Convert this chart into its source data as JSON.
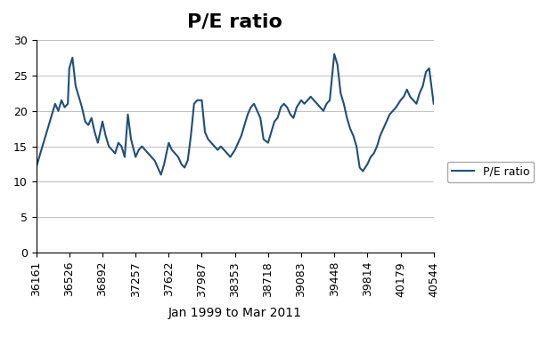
{
  "title": "P/E ratio",
  "xlabel": "Jan 1999 to Mar 2011",
  "legend_label": "P/E ratio",
  "line_color": "#1F4E79",
  "background_color": "#FFFFFF",
  "plot_bg_color": "#FFFFFF",
  "ylim": [
    0,
    30
  ],
  "yticks": [
    0,
    5,
    10,
    15,
    20,
    25,
    30
  ],
  "xtick_labels": [
    "36161",
    "36526",
    "36892",
    "37257",
    "37622",
    "37987",
    "38353",
    "38718",
    "39083",
    "39448",
    "39814",
    "40179",
    "40544"
  ],
  "xtick_values": [
    36161,
    36526,
    36892,
    37257,
    37622,
    37987,
    38353,
    38718,
    39083,
    39448,
    39814,
    40179,
    40544
  ],
  "x_values": [
    36161,
    36195,
    36230,
    36265,
    36300,
    36335,
    36370,
    36405,
    36440,
    36475,
    36510,
    36526,
    36561,
    36596,
    36631,
    36666,
    36701,
    36736,
    36771,
    36806,
    36841,
    36892,
    36927,
    36962,
    36997,
    37032,
    37067,
    37102,
    37137,
    37172,
    37207,
    37257,
    37292,
    37327,
    37362,
    37397,
    37432,
    37467,
    37502,
    37537,
    37572,
    37622,
    37657,
    37692,
    37727,
    37762,
    37797,
    37832,
    37867,
    37902,
    37937,
    37987,
    38022,
    38057,
    38092,
    38127,
    38162,
    38197,
    38232,
    38267,
    38302,
    38353,
    38388,
    38423,
    38458,
    38493,
    38528,
    38563,
    38598,
    38633,
    38668,
    38718,
    38753,
    38788,
    38823,
    38858,
    38893,
    38928,
    38963,
    38998,
    39033,
    39083,
    39118,
    39153,
    39188,
    39223,
    39258,
    39293,
    39328,
    39363,
    39398,
    39448,
    39483,
    39518,
    39553,
    39588,
    39623,
    39658,
    39693,
    39728,
    39763,
    39814,
    39849,
    39884,
    39919,
    39954,
    39989,
    40024,
    40059,
    40094,
    40129,
    40179,
    40214,
    40249,
    40284,
    40319,
    40354,
    40389,
    40424,
    40459,
    40494,
    40544
  ],
  "pe_values": [
    12.0,
    13.5,
    15.0,
    16.5,
    18.0,
    19.5,
    21.0,
    20.0,
    21.5,
    20.5,
    21.0,
    26.0,
    27.5,
    23.5,
    22.0,
    20.5,
    18.5,
    18.0,
    19.0,
    17.0,
    15.5,
    18.5,
    16.5,
    15.0,
    14.5,
    14.0,
    15.5,
    15.0,
    13.5,
    19.5,
    16.0,
    13.5,
    14.5,
    15.0,
    14.5,
    14.0,
    13.5,
    13.0,
    12.0,
    11.0,
    12.5,
    15.5,
    14.5,
    14.0,
    13.5,
    12.5,
    12.0,
    13.0,
    16.5,
    21.0,
    21.5,
    21.5,
    17.0,
    16.0,
    15.5,
    15.0,
    14.5,
    15.0,
    14.5,
    14.0,
    13.5,
    14.5,
    15.5,
    16.5,
    18.0,
    19.5,
    20.5,
    21.0,
    20.0,
    19.0,
    16.0,
    15.5,
    17.0,
    18.5,
    19.0,
    20.5,
    21.0,
    20.5,
    19.5,
    19.0,
    20.5,
    21.5,
    21.0,
    21.5,
    22.0,
    21.5,
    21.0,
    20.5,
    20.0,
    21.0,
    21.5,
    28.0,
    26.5,
    22.5,
    21.0,
    19.0,
    17.5,
    16.5,
    15.0,
    12.0,
    11.5,
    12.5,
    13.5,
    14.0,
    15.0,
    16.5,
    17.5,
    18.5,
    19.5,
    20.0,
    20.5,
    21.5,
    22.0,
    23.0,
    22.0,
    21.5,
    21.0,
    22.5,
    23.5,
    25.5,
    26.0,
    21.0
  ],
  "title_fontsize": 16,
  "tick_fontsize": 9,
  "xlabel_fontsize": 10,
  "legend_fontsize": 9,
  "line_width": 1.5,
  "grid_color": "#C0C0C0",
  "grid_linewidth": 0.7
}
